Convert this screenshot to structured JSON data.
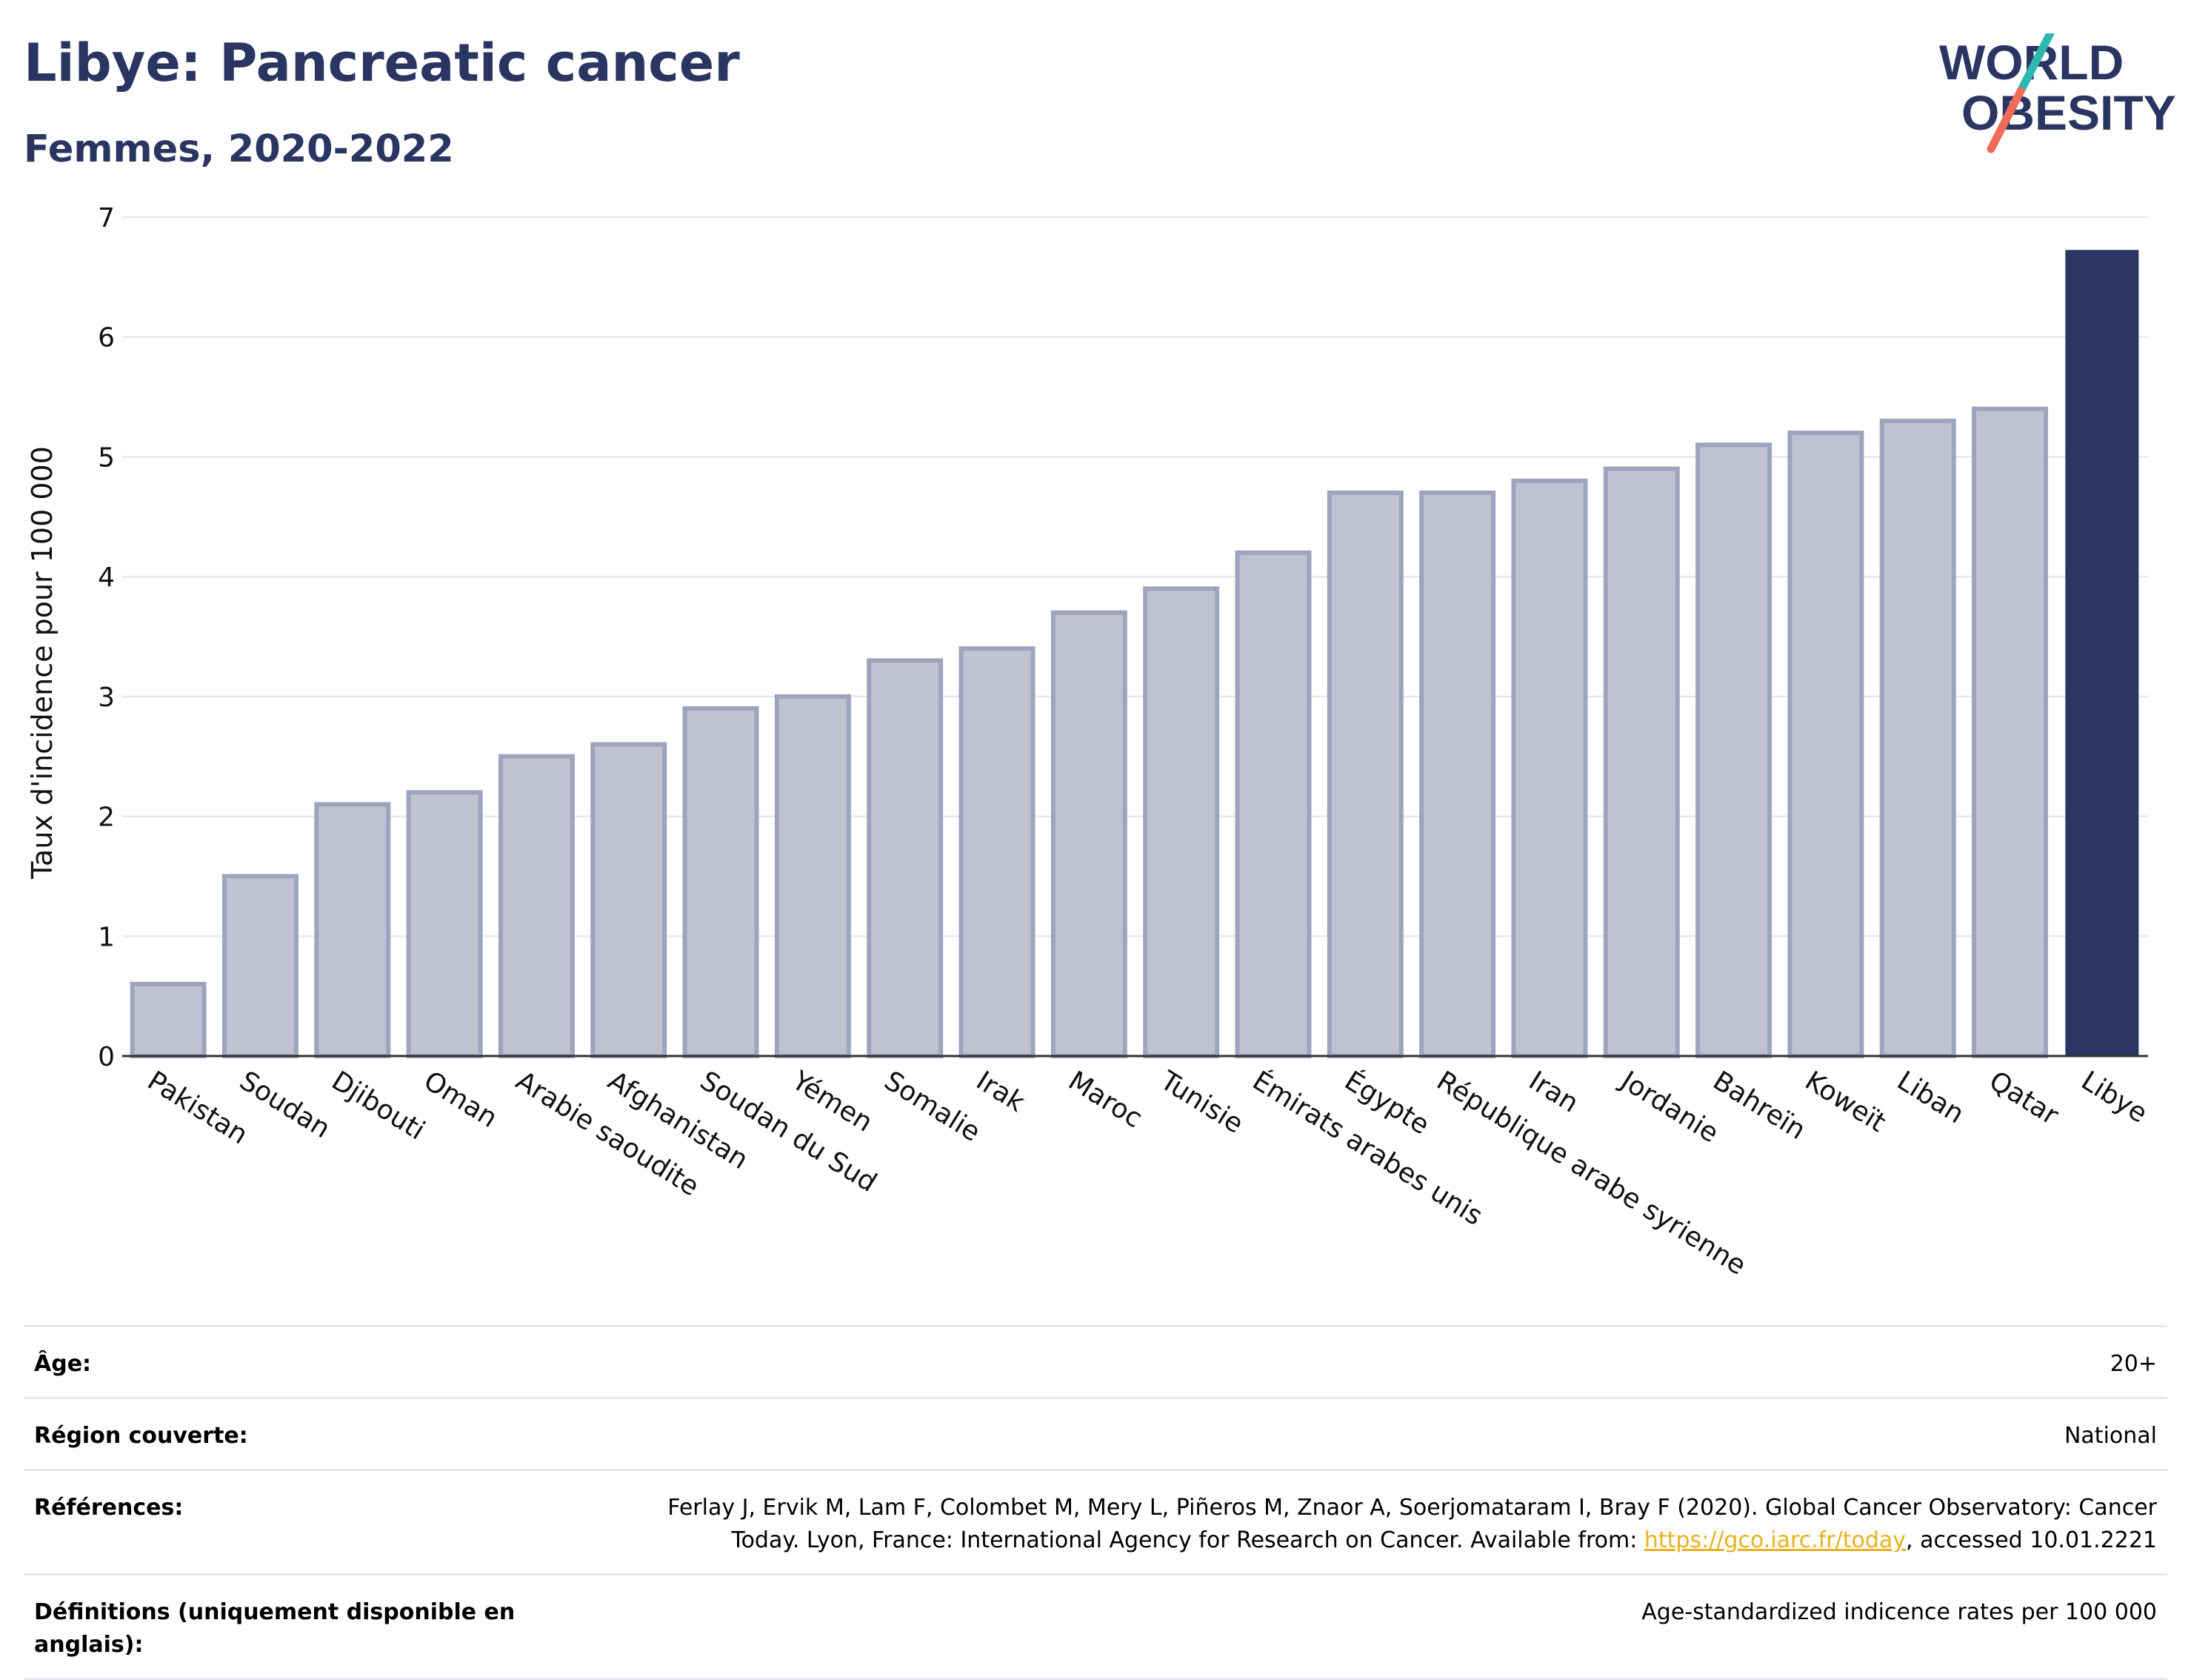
{
  "header": {
    "title": "Libye: Pancreatic cancer",
    "subtitle": "Femmes, 2020-2022",
    "logo_line1": "WORLD",
    "logo_line2": "OBESITY"
  },
  "colors": {
    "title": "#2b3562",
    "bar_default_fill": "#bfc3d1",
    "bar_default_stroke": "#9ea4bd",
    "bar_highlight": "#2b3562",
    "grid": "#e6e8ef",
    "logo_teal": "#2fb8b1",
    "logo_coral": "#f26a5a",
    "link": "#e8b21e"
  },
  "chart_data": {
    "type": "bar",
    "categories": [
      "Pakistan",
      "Soudan",
      "Djibouti",
      "Oman",
      "Arabie saoudite",
      "Afghanistan",
      "Soudan du Sud",
      "Yémen",
      "Somalie",
      "Irak",
      "Maroc",
      "Tunisie",
      "Émirats arabes unis",
      "Égypte",
      "République arabe syrienne",
      "Iran",
      "Jordanie",
      "Bahreïn",
      "Koweït",
      "Liban",
      "Qatar",
      "Libye"
    ],
    "values": [
      0.6,
      1.5,
      2.1,
      2.2,
      2.5,
      2.6,
      2.9,
      3.0,
      3.3,
      3.4,
      3.7,
      3.9,
      4.2,
      4.7,
      4.7,
      4.8,
      4.9,
      5.1,
      5.2,
      5.3,
      5.4,
      6.72
    ],
    "highlight": "Libye",
    "ylabel": "Taux d'incidence pour 100 000",
    "ylim": [
      0,
      7
    ],
    "yticks": [
      "0",
      "1",
      "2",
      "3",
      "4",
      "5",
      "6",
      "7"
    ],
    "grid": true,
    "legend": "none"
  },
  "meta": {
    "age_label": "Âge:",
    "age_value": "20+",
    "region_label": "Région couverte:",
    "region_value": "National",
    "references_label": "Références:",
    "references_text_line1": "Ferlay J, Ervik M, Lam F, Colombet M, Mery L, Piñeros M, Znaor A, Soerjomataram I, Bray F (2020). Global Cancer Observatory: Cancer",
    "references_text_line2_pre": "Today. Lyon, France: International Agency for Research on Cancer. Available from: ",
    "references_link": "https://gco.iarc.fr/today",
    "references_text_line2_post": ", accessed 10.01.2221",
    "definitions_label": "Définitions (uniquement disponible en anglais):",
    "definitions_value": "Age-standardized indicence rates per 100 000"
  }
}
